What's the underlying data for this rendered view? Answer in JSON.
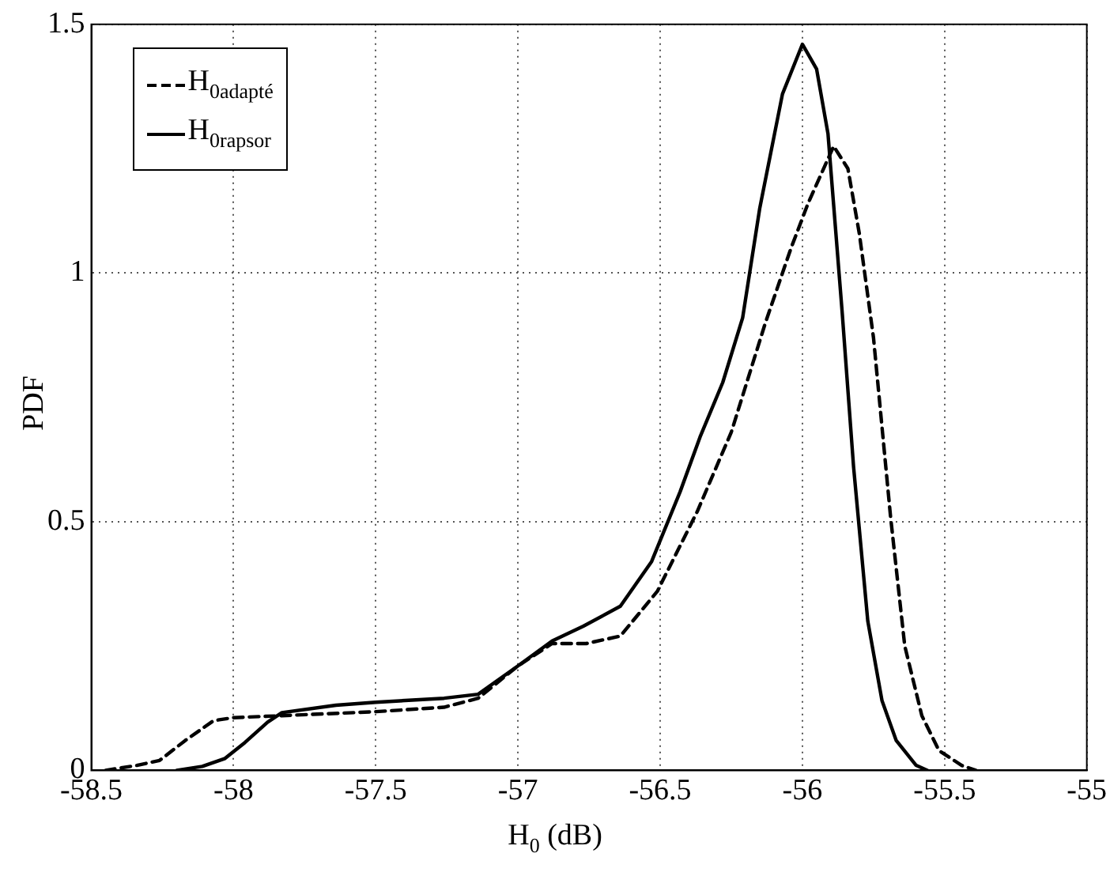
{
  "chart_data": {
    "type": "line",
    "xlabel": "H$_{0}$ (dB)",
    "ylabel": "PDF",
    "xlim": [
      -58.5,
      -55
    ],
    "xticks": [
      -58.5,
      -58,
      -57.5,
      -57,
      -56.5,
      -56,
      -55.5,
      -55
    ],
    "ylim": [
      0,
      1.5
    ],
    "yticks": [
      0,
      0.5,
      1,
      1.5
    ],
    "grid": true,
    "legend": "top left",
    "marker": "none",
    "series": [
      {
        "name": "H$_{0adapté}$",
        "color": "#000000",
        "line_style": "dashed",
        "x": [
          -58.45,
          -58.34,
          -58.26,
          -58.17,
          -58.07,
          -58.0,
          -57.83,
          -57.5,
          -57.26,
          -57.14,
          -57.0,
          -56.88,
          -56.76,
          -56.64,
          -56.51,
          -56.37,
          -56.25,
          -56.13,
          -56.04,
          -55.98,
          -55.89,
          -55.84,
          -55.8,
          -55.75,
          -55.69,
          -55.64,
          -55.58,
          -55.52,
          -55.44,
          -55.39
        ],
        "values": [
          0,
          0.01,
          0.02,
          0.06,
          0.1,
          0.106,
          0.11,
          0.118,
          0.127,
          0.145,
          0.21,
          0.255,
          0.255,
          0.27,
          0.36,
          0.52,
          0.68,
          0.9,
          1.05,
          1.14,
          1.255,
          1.21,
          1.08,
          0.87,
          0.51,
          0.25,
          0.11,
          0.04,
          0.01,
          0
        ]
      },
      {
        "name": "H$_{0rapsor}$",
        "color": "#000000",
        "line_style": "solid",
        "x": [
          -58.2,
          -58.11,
          -58.03,
          -57.96,
          -57.88,
          -57.83,
          -57.64,
          -57.5,
          -57.26,
          -57.14,
          -57.0,
          -56.88,
          -56.77,
          -56.64,
          -56.53,
          -56.43,
          -56.36,
          -56.28,
          -56.21,
          -56.15,
          -56.07,
          -56.0,
          -55.95,
          -55.91,
          -55.86,
          -55.82,
          -55.77,
          -55.72,
          -55.67,
          -55.6,
          -55.56
        ],
        "values": [
          0,
          0.008,
          0.024,
          0.056,
          0.097,
          0.116,
          0.131,
          0.137,
          0.145,
          0.153,
          0.21,
          0.26,
          0.29,
          0.33,
          0.42,
          0.56,
          0.67,
          0.78,
          0.91,
          1.13,
          1.36,
          1.46,
          1.41,
          1.28,
          0.92,
          0.61,
          0.3,
          0.14,
          0.06,
          0.01,
          0
        ]
      }
    ]
  }
}
